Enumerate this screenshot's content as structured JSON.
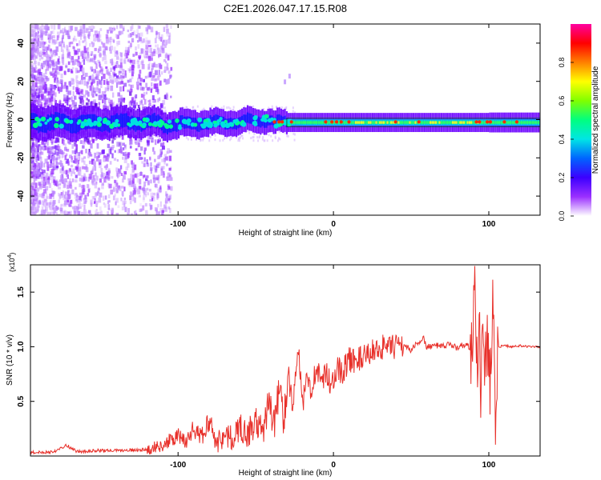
{
  "title": "C2E1.2026.047.17.15.R08",
  "chart_data": [
    {
      "type": "heatmap",
      "name": "spectrogram",
      "xlabel": "Height of straight line (km)",
      "ylabel": "Frequency (Hz)",
      "xlim": [
        -195,
        133
      ],
      "ylim": [
        -50,
        50
      ],
      "xticks": [
        -100,
        0,
        100
      ],
      "xtick_labels": [
        "-100",
        "0",
        "100"
      ],
      "yticks": [
        -40,
        -20,
        0,
        20,
        40
      ],
      "ytick_labels": [
        "-40",
        "-20",
        "0",
        "20",
        "40"
      ],
      "signal_band_center_hz": -1.5,
      "colorbar": {
        "label": "Normalized spectral amplitude",
        "range": [
          0,
          1
        ],
        "ticks": [
          0,
          0.2,
          0.4,
          0.6,
          0.8
        ],
        "tick_labels": [
          "0.0",
          "0.2",
          "0.4",
          "0.6",
          "0.8"
        ],
        "colormap": [
          "#ffffff",
          "#9b30ff",
          "#3c00ff",
          "#0064ff",
          "#00e5e5",
          "#00ff80",
          "#80ff00",
          "#ffff00",
          "#ff8000",
          "#ff0000",
          "#ff00a0"
        ]
      }
    },
    {
      "type": "line",
      "name": "snr",
      "xlabel": "Height of straight line (km)",
      "ylabel": "SNR (10 * v/v)",
      "multiplier": "(x10^4)",
      "multiplier_base": "(x10",
      "multiplier_exp": "4",
      "multiplier_close": ")",
      "xlim": [
        -195,
        133
      ],
      "ylim": [
        0,
        1.75
      ],
      "xticks": [
        -100,
        0,
        100
      ],
      "xtick_labels": [
        "-100",
        "0",
        "100"
      ],
      "yticks": [
        0.5,
        1.0,
        1.5
      ],
      "ytick_labels": [
        "0.5",
        "1.0",
        "1.5"
      ],
      "color": "#e8302a",
      "x": [
        -195,
        -180,
        -172,
        -165,
        -150,
        -135,
        -120,
        -110,
        -100,
        -95,
        -90,
        -85,
        -80,
        -75,
        -70,
        -65,
        -60,
        -55,
        -50,
        -45,
        -42,
        -38,
        -35,
        -32,
        -29,
        -26,
        -23,
        -20,
        -17,
        -14,
        -11,
        -8,
        -5,
        -2,
        2,
        6,
        10,
        15,
        20,
        25,
        30,
        35,
        40,
        45,
        50,
        55,
        58,
        60,
        65,
        70,
        75,
        80,
        85,
        89,
        91,
        93,
        94,
        95,
        96,
        97,
        99,
        101,
        103,
        104,
        106,
        110,
        115,
        120,
        125,
        133
      ],
      "y": [
        0.03,
        0.04,
        0.1,
        0.04,
        0.05,
        0.05,
        0.06,
        0.1,
        0.18,
        0.14,
        0.25,
        0.16,
        0.33,
        0.12,
        0.2,
        0.15,
        0.27,
        0.2,
        0.31,
        0.2,
        0.5,
        0.28,
        0.62,
        0.35,
        0.75,
        0.4,
        1.05,
        0.45,
        0.72,
        0.6,
        0.85,
        0.62,
        0.78,
        0.65,
        0.8,
        0.78,
        0.88,
        0.88,
        0.9,
        0.96,
        1.0,
        0.98,
        1.0,
        1.02,
        0.97,
        1.05,
        1.07,
        1.0,
        1.01,
        1.0,
        1.02,
        0.99,
        1.03,
        0.98,
        1.75,
        0.4,
        1.2,
        0.5,
        1.55,
        0.8,
        1.05,
        0.6,
        1.65,
        0.35,
        1.0,
        1.01,
        1.0,
        1.01,
        1.0,
        1.0
      ]
    }
  ]
}
